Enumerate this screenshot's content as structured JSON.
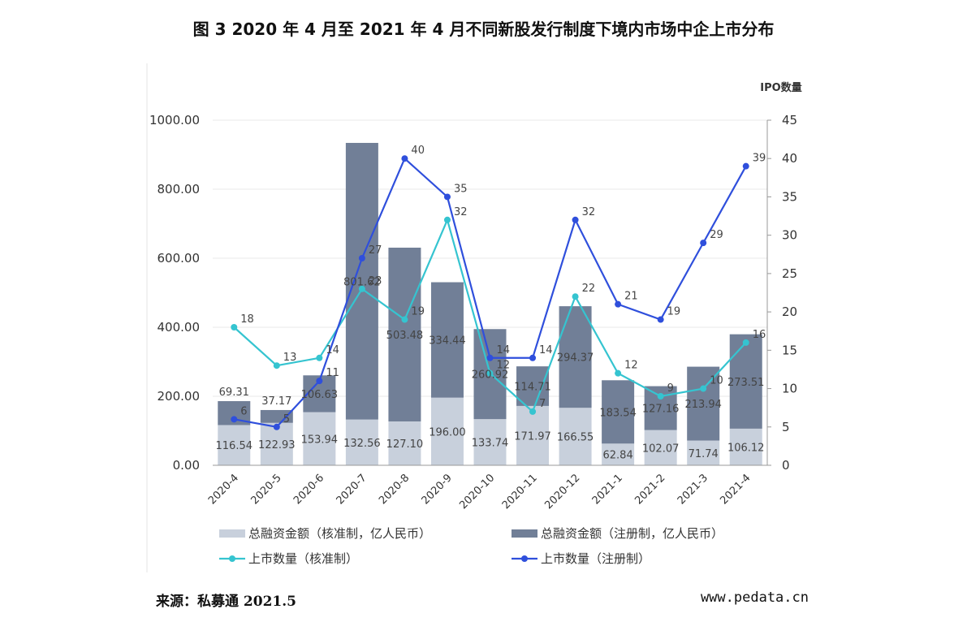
{
  "title": "图 3 2020 年 4 月至 2021 年 4 月不同新股发行制度下境内市场中企上市分布",
  "source": "来源：私募通 2021.5",
  "website": "www.pedata.cn",
  "colors": {
    "bar_hezhun": "#c8d0dc",
    "bar_zhuce": "#717f97",
    "line_hezhun": "#35c4d0",
    "line_zhuce": "#2f4fdc"
  },
  "chart_data": {
    "type": "bar",
    "stacked": true,
    "categories": [
      "2020-4",
      "2020-5",
      "2020-6",
      "2020-7",
      "2020-8",
      "2020-9",
      "2020-10",
      "2020-11",
      "2020-12",
      "2021-1",
      "2021-2",
      "2021-3",
      "2021-4"
    ],
    "y_left": {
      "ylim": [
        0,
        1000
      ],
      "ticks": [
        "0.00",
        "200.00",
        "400.00",
        "600.00",
        "800.00",
        "1000.00"
      ]
    },
    "y_right": {
      "label": "IPO数量",
      "ylim": [
        0,
        45
      ],
      "ticks": [
        "0",
        "5",
        "10",
        "15",
        "20",
        "25",
        "30",
        "35",
        "40",
        "45"
      ]
    },
    "series": [
      {
        "name": "总融资金额（核准制，亿人民币）",
        "kind": "bar",
        "values": [
          116.54,
          122.93,
          153.94,
          132.56,
          127.1,
          196.0,
          133.74,
          171.97,
          166.55,
          62.84,
          102.07,
          71.74,
          106.12
        ],
        "labels": [
          "116.54",
          "122.93",
          "153.94",
          "132.56",
          "127.10",
          "196.00",
          "133.74",
          "171.97",
          "166.55",
          "62.84",
          "102.07",
          "71.74",
          "106.12"
        ]
      },
      {
        "name": "总融资金额（注册制，亿人民币）",
        "kind": "bar",
        "values": [
          69.31,
          37.17,
          106.63,
          801.62,
          503.48,
          334.44,
          260.92,
          114.71,
          294.37,
          183.54,
          127.16,
          213.94,
          273.51
        ],
        "labels": [
          "69.31",
          "37.17",
          "106.63",
          "801.62",
          "503.48",
          "334.44",
          "260.92",
          "114.71",
          "294.37",
          "183.54",
          "127.16",
          "213.94",
          "273.51"
        ]
      },
      {
        "name": "上市数量（核准制）",
        "kind": "line",
        "values": [
          18,
          13,
          14,
          23,
          19,
          32,
          12,
          7,
          22,
          12,
          9,
          10,
          16
        ],
        "labels": [
          "18",
          "13",
          "14",
          "23",
          "19",
          "32",
          "12",
          "7",
          "22",
          "12",
          "9",
          "10",
          "16"
        ]
      },
      {
        "name": "上市数量（注册制）",
        "kind": "line",
        "values": [
          6,
          5,
          11,
          27,
          40,
          35,
          14,
          14,
          32,
          21,
          19,
          29,
          39
        ],
        "labels": [
          "6",
          "5",
          "11",
          "27",
          "40",
          "35",
          "14",
          "14",
          "32",
          "21",
          "19",
          "29",
          "39"
        ]
      }
    ],
    "grid": true,
    "legend_position": "bottom"
  }
}
